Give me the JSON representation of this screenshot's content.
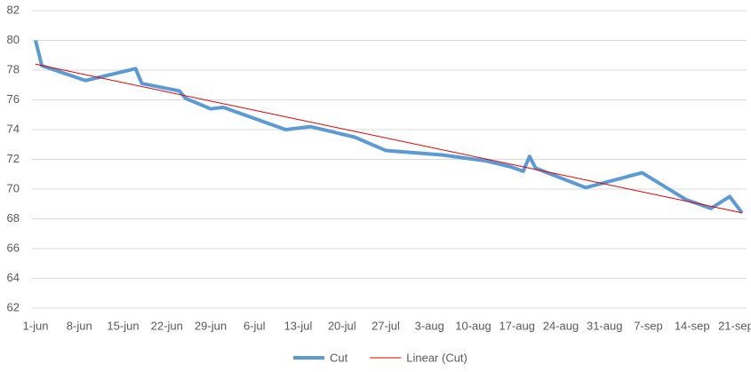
{
  "chart_data": {
    "type": "line",
    "xlim": [
      0,
      113
    ],
    "xticks": [
      {
        "value": 0,
        "label": "1-jun"
      },
      {
        "value": 7,
        "label": "8-jun"
      },
      {
        "value": 14,
        "label": "15-jun"
      },
      {
        "value": 21,
        "label": "22-jun"
      },
      {
        "value": 28,
        "label": "29-jun"
      },
      {
        "value": 35,
        "label": "6-jul"
      },
      {
        "value": 42,
        "label": "13-jul"
      },
      {
        "value": 49,
        "label": "20-jul"
      },
      {
        "value": 56,
        "label": "27-jul"
      },
      {
        "value": 63,
        "label": "3-aug"
      },
      {
        "value": 70,
        "label": "10-aug"
      },
      {
        "value": 77,
        "label": "17-aug"
      },
      {
        "value": 84,
        "label": "24-aug"
      },
      {
        "value": 91,
        "label": "31-aug"
      },
      {
        "value": 98,
        "label": "7-sep"
      },
      {
        "value": 105,
        "label": "14-sep"
      },
      {
        "value": 112,
        "label": "21-sep"
      }
    ],
    "ylim": [
      62,
      82
    ],
    "yticks": [
      62,
      64,
      66,
      68,
      70,
      72,
      74,
      76,
      78,
      80,
      82
    ],
    "grid": true,
    "legend": "bottom",
    "series": [
      {
        "name": "Cut",
        "color": "#5b9bd5",
        "x": [
          0,
          1,
          8,
          16,
          17,
          23,
          24,
          28,
          30,
          40,
          44,
          51,
          56,
          65,
          72,
          76,
          78,
          79,
          80,
          88,
          97,
          104,
          108,
          111,
          113
        ],
        "values": [
          80.0,
          78.3,
          77.3,
          78.1,
          77.1,
          76.6,
          76.1,
          75.4,
          75.5,
          74.0,
          74.2,
          73.5,
          72.6,
          72.3,
          71.9,
          71.5,
          71.2,
          72.2,
          71.4,
          70.1,
          71.1,
          69.3,
          68.7,
          69.5,
          68.4
        ]
      },
      {
        "name": "Linear (Cut)",
        "color": "#e00000",
        "x": [
          0,
          113
        ],
        "values": [
          78.4,
          68.4
        ]
      }
    ]
  }
}
